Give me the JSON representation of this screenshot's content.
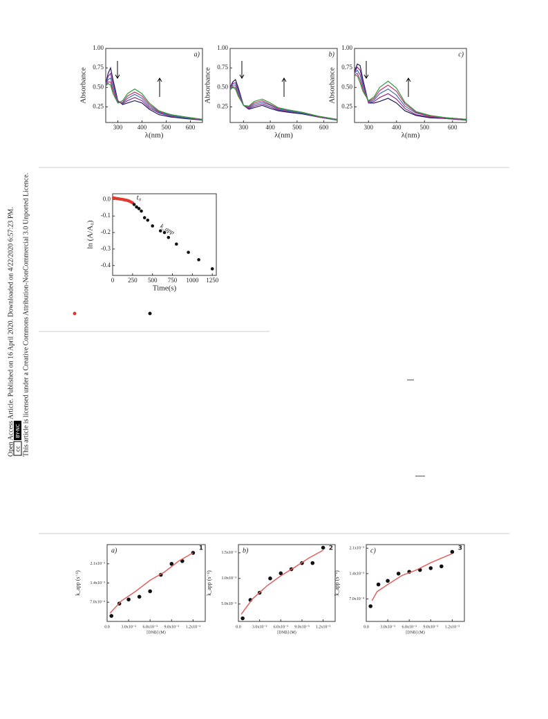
{
  "sidebar": {
    "line1": "Open Access Article. Published on 16 April 2020. Downloaded on 4/22/2020 6:57:23 PM.",
    "line2": "This article is licensed under a Creative Commons Attribution-NonCommercial 3.0 Unported Licence.",
    "badge_cc": "cc",
    "badge_by": "BY-NC"
  },
  "chart_data": [
    {
      "type": "line",
      "annotation": "a)",
      "xlabel": "λ(nm)",
      "ylabel": "Absorbance",
      "xlim": [
        250,
        650
      ],
      "ylim": [
        0.05,
        1.0
      ],
      "xticks": [
        300,
        400,
        500,
        600
      ],
      "yticks": [
        {
          "value": 0.25,
          "label": "0.25"
        },
        {
          "value": 0.5,
          "label": "0.50"
        },
        {
          "value": 0.75,
          "label": "0.75"
        },
        {
          "value": 1.0,
          "label": "1.00"
        }
      ],
      "x": [
        250,
        260,
        270,
        280,
        300,
        320,
        340,
        370,
        400,
        430,
        470,
        520,
        580,
        650
      ],
      "series": [
        {
          "color": "#1a1a5e",
          "values": [
            0.55,
            0.68,
            0.75,
            0.6,
            0.33,
            0.28,
            0.3,
            0.33,
            0.3,
            0.22,
            0.15,
            0.12,
            0.1,
            0.08
          ]
        },
        {
          "color": "#8b2a8b",
          "values": [
            0.55,
            0.64,
            0.68,
            0.55,
            0.32,
            0.29,
            0.33,
            0.37,
            0.33,
            0.24,
            0.17,
            0.13,
            0.11,
            0.08
          ]
        },
        {
          "color": "#3a6fb0",
          "values": [
            0.54,
            0.6,
            0.62,
            0.5,
            0.31,
            0.3,
            0.36,
            0.41,
            0.36,
            0.26,
            0.18,
            0.14,
            0.11,
            0.09
          ]
        },
        {
          "color": "#c0306a",
          "values": [
            0.53,
            0.57,
            0.57,
            0.46,
            0.3,
            0.31,
            0.39,
            0.44,
            0.39,
            0.28,
            0.19,
            0.15,
            0.12,
            0.09
          ]
        },
        {
          "color": "#2e9a3a",
          "values": [
            0.52,
            0.55,
            0.53,
            0.42,
            0.3,
            0.33,
            0.42,
            0.48,
            0.42,
            0.3,
            0.2,
            0.15,
            0.12,
            0.09
          ]
        }
      ]
    },
    {
      "type": "line",
      "annotation": "b)",
      "xlabel": "λ(nm)",
      "ylabel": "Absorbance",
      "xlim": [
        250,
        650
      ],
      "ylim": [
        0.05,
        1.0
      ],
      "xticks": [
        300,
        400,
        500,
        600
      ],
      "yticks": [
        {
          "value": 0.25,
          "label": "0.25"
        },
        {
          "value": 0.5,
          "label": "0.50"
        },
        {
          "value": 0.75,
          "label": "0.75"
        },
        {
          "value": 1.0,
          "label": "1.00"
        }
      ],
      "x": [
        250,
        260,
        270,
        280,
        300,
        320,
        340,
        370,
        400,
        430,
        470,
        520,
        580,
        650
      ],
      "series": [
        {
          "color": "#1a1a5e",
          "values": [
            0.5,
            0.57,
            0.6,
            0.5,
            0.27,
            0.22,
            0.24,
            0.27,
            0.23,
            0.2,
            0.18,
            0.16,
            0.12,
            0.08
          ]
        },
        {
          "color": "#8b2a8b",
          "values": [
            0.5,
            0.55,
            0.56,
            0.47,
            0.27,
            0.23,
            0.26,
            0.29,
            0.25,
            0.21,
            0.19,
            0.17,
            0.12,
            0.08
          ]
        },
        {
          "color": "#3a6fb0",
          "values": [
            0.49,
            0.53,
            0.53,
            0.44,
            0.27,
            0.24,
            0.28,
            0.31,
            0.27,
            0.22,
            0.2,
            0.17,
            0.13,
            0.08
          ]
        },
        {
          "color": "#c0306a",
          "values": [
            0.48,
            0.51,
            0.5,
            0.41,
            0.27,
            0.25,
            0.3,
            0.33,
            0.28,
            0.23,
            0.21,
            0.18,
            0.13,
            0.09
          ]
        },
        {
          "color": "#2e9a3a",
          "values": [
            0.47,
            0.5,
            0.48,
            0.39,
            0.27,
            0.26,
            0.32,
            0.35,
            0.3,
            0.24,
            0.21,
            0.18,
            0.13,
            0.09
          ]
        }
      ]
    },
    {
      "type": "line",
      "annotation": "c)",
      "xlabel": "λ(nm)",
      "ylabel": "Absorbance",
      "xlim": [
        250,
        650
      ],
      "ylim": [
        0.05,
        1.0
      ],
      "xticks": [
        300,
        400,
        500,
        600
      ],
      "yticks": [
        {
          "value": 0.25,
          "label": "0.25"
        },
        {
          "value": 0.5,
          "label": "0.50"
        },
        {
          "value": 0.75,
          "label": "0.75"
        },
        {
          "value": 1.0,
          "label": "1.00"
        }
      ],
      "x": [
        250,
        260,
        270,
        280,
        300,
        320,
        340,
        370,
        400,
        430,
        470,
        520,
        580,
        650
      ],
      "series": [
        {
          "color": "#1a1a5e",
          "values": [
            0.7,
            0.8,
            0.78,
            0.6,
            0.3,
            0.3,
            0.32,
            0.36,
            0.3,
            0.2,
            0.14,
            0.11,
            0.1,
            0.08
          ]
        },
        {
          "color": "#8b2a8b",
          "values": [
            0.69,
            0.76,
            0.72,
            0.56,
            0.3,
            0.32,
            0.37,
            0.42,
            0.35,
            0.23,
            0.15,
            0.12,
            0.1,
            0.08
          ]
        },
        {
          "color": "#3a6fb0",
          "values": [
            0.68,
            0.72,
            0.66,
            0.52,
            0.31,
            0.34,
            0.42,
            0.48,
            0.4,
            0.26,
            0.17,
            0.13,
            0.11,
            0.09
          ]
        },
        {
          "color": "#c0306a",
          "values": [
            0.66,
            0.68,
            0.6,
            0.48,
            0.32,
            0.36,
            0.46,
            0.53,
            0.45,
            0.29,
            0.18,
            0.13,
            0.11,
            0.09
          ]
        },
        {
          "color": "#2e9a3a",
          "values": [
            0.65,
            0.65,
            0.56,
            0.45,
            0.33,
            0.38,
            0.5,
            0.58,
            0.49,
            0.31,
            0.19,
            0.14,
            0.11,
            0.09
          ]
        }
      ]
    },
    {
      "type": "scatter",
      "xlabel": "Time(s)",
      "ylabel": "ln (A/A₀)",
      "annotations": [
        "t₀",
        "k_app"
      ],
      "xlim": [
        0,
        1300
      ],
      "ylim": [
        -0.46,
        0.035
      ],
      "xticks": [
        0,
        250,
        500,
        750,
        1000,
        1250
      ],
      "yticks": [
        {
          "value": 0,
          "label": "0.0"
        },
        -0.1,
        -0.2,
        -0.3,
        -0.4
      ],
      "series": [
        {
          "color": "#e03a2e",
          "x": [
            10,
            30,
            50,
            70,
            90,
            110,
            130,
            150,
            170,
            190,
            210,
            230,
            250
          ],
          "values": [
            0.01,
            0.008,
            0.006,
            0.005,
            0.003,
            0.002,
            0.0,
            -0.002,
            -0.004,
            -0.006,
            -0.01,
            -0.015,
            -0.02
          ]
        },
        {
          "color": "#111111",
          "x": [
            270,
            300,
            330,
            360,
            400,
            440,
            500,
            600,
            650,
            700,
            800,
            950,
            1080,
            1250
          ],
          "values": [
            -0.03,
            -0.045,
            -0.055,
            -0.07,
            -0.11,
            -0.125,
            -0.16,
            -0.19,
            -0.2,
            -0.23,
            -0.27,
            -0.32,
            -0.365,
            -0.42
          ]
        }
      ]
    },
    {
      "type": "scatter",
      "annotation": "a)",
      "panel": "1",
      "xlabel": "[DNB] (M)",
      "ylabel": "k_app (s⁻¹)",
      "xlim": [
        0,
        0.0137
      ],
      "ylim": [
        0,
        0.0028
      ],
      "xticks": [
        {
          "value": 0,
          "label": "0.0"
        },
        {
          "value": 0.003,
          "label": "3.0x10⁻³"
        },
        {
          "value": 0.006,
          "label": "6.0x10⁻³"
        },
        {
          "value": 0.009,
          "label": "9.0x10⁻³"
        },
        {
          "value": 0.012,
          "label": "1.2x10⁻²"
        }
      ],
      "yticks": [
        {
          "value": 0.0007,
          "label": "7.0x10⁻⁴"
        },
        {
          "value": 0.0014,
          "label": "1.4x10⁻³"
        },
        {
          "value": 0.0021,
          "label": "2.1x10⁻³"
        }
      ],
      "series": [
        {
          "color": "#111111",
          "x": [
            0.0006,
            0.0017,
            0.003,
            0.0045,
            0.006,
            0.0075,
            0.009,
            0.0105,
            0.012
          ],
          "values": [
            0.0002,
            0.00065,
            0.0008,
            0.0009,
            0.0011,
            0.0017,
            0.0021,
            0.0022,
            0.0025
          ]
        },
        {
          "color": "#e06060",
          "fit": true,
          "x": [
            0.0004,
            0.002,
            0.004,
            0.006,
            0.008,
            0.01,
            0.012
          ],
          "values": [
            0.0003,
            0.00075,
            0.0011,
            0.0015,
            0.0018,
            0.0022,
            0.0025
          ]
        }
      ]
    },
    {
      "type": "scatter",
      "annotation": "b)",
      "panel": "2",
      "xlabel": "[DNB] (M)",
      "ylabel": "k_app (s⁻¹)",
      "xlim": [
        0,
        0.0137
      ],
      "ylim": [
        0.00016,
        0.00166
      ],
      "xticks": [
        {
          "value": 0,
          "label": "0.0"
        },
        {
          "value": 0.003,
          "label": "3.0x10⁻³"
        },
        {
          "value": 0.006,
          "label": "6.0x10⁻³"
        },
        {
          "value": 0.009,
          "label": "9.0x10⁻³"
        },
        {
          "value": 0.012,
          "label": "1.2x10⁻²"
        }
      ],
      "yticks": [
        {
          "value": 0.0005,
          "label": "5.0x10⁻⁴"
        },
        {
          "value": 0.001,
          "label": "1.0x10⁻³"
        },
        {
          "value": 0.0015,
          "label": "1.5x10⁻³"
        }
      ],
      "series": [
        {
          "color": "#111111",
          "x": [
            0.0006,
            0.0017,
            0.003,
            0.0045,
            0.006,
            0.0075,
            0.009,
            0.0105,
            0.012
          ],
          "values": [
            0.00022,
            0.00058,
            0.00072,
            0.001,
            0.0011,
            0.00118,
            0.0013,
            0.0013,
            0.0016
          ]
        },
        {
          "color": "#e06060",
          "fit": true,
          "x": [
            0.0004,
            0.002,
            0.004,
            0.006,
            0.008,
            0.01,
            0.012
          ],
          "values": [
            0.0003,
            0.0006,
            0.00085,
            0.00105,
            0.00122,
            0.0014,
            0.00155
          ]
        }
      ]
    },
    {
      "type": "scatter",
      "annotation": "c)",
      "panel": "3",
      "xlabel": "[DNB] (M)",
      "ylabel": "k_app (s⁻¹)",
      "xlim": [
        0,
        0.0137
      ],
      "ylim": [
        8e-05,
        0.0022
      ],
      "xticks": [
        {
          "value": 0,
          "label": "0.0"
        },
        {
          "value": 0.003,
          "label": "3.0x10⁻³"
        },
        {
          "value": 0.006,
          "label": "6.0x10⁻³"
        },
        {
          "value": 0.009,
          "label": "9.0x10⁻³"
        },
        {
          "value": 0.012,
          "label": "1.2x10⁻²"
        }
      ],
      "yticks": [
        {
          "value": 0.0007,
          "label": "7.0x10⁻⁴"
        },
        {
          "value": 0.0014,
          "label": "1.4x10⁻³"
        },
        {
          "value": 0.0021,
          "label": "2.1x10⁻³"
        }
      ],
      "series": [
        {
          "color": "#111111",
          "x": [
            0.0006,
            0.0017,
            0.003,
            0.0045,
            0.006,
            0.0075,
            0.009,
            0.0105,
            0.012
          ],
          "values": [
            0.0005,
            0.0011,
            0.0012,
            0.0014,
            0.00145,
            0.0015,
            0.00155,
            0.0016,
            0.002
          ]
        },
        {
          "color": "#e06060",
          "fit": true,
          "x": [
            0.0008,
            0.0015,
            0.003,
            0.005,
            0.007,
            0.009,
            0.012
          ],
          "values": [
            0.00065,
            0.0009,
            0.0011,
            0.00135,
            0.0015,
            0.0017,
            0.00195
          ]
        }
      ]
    }
  ]
}
